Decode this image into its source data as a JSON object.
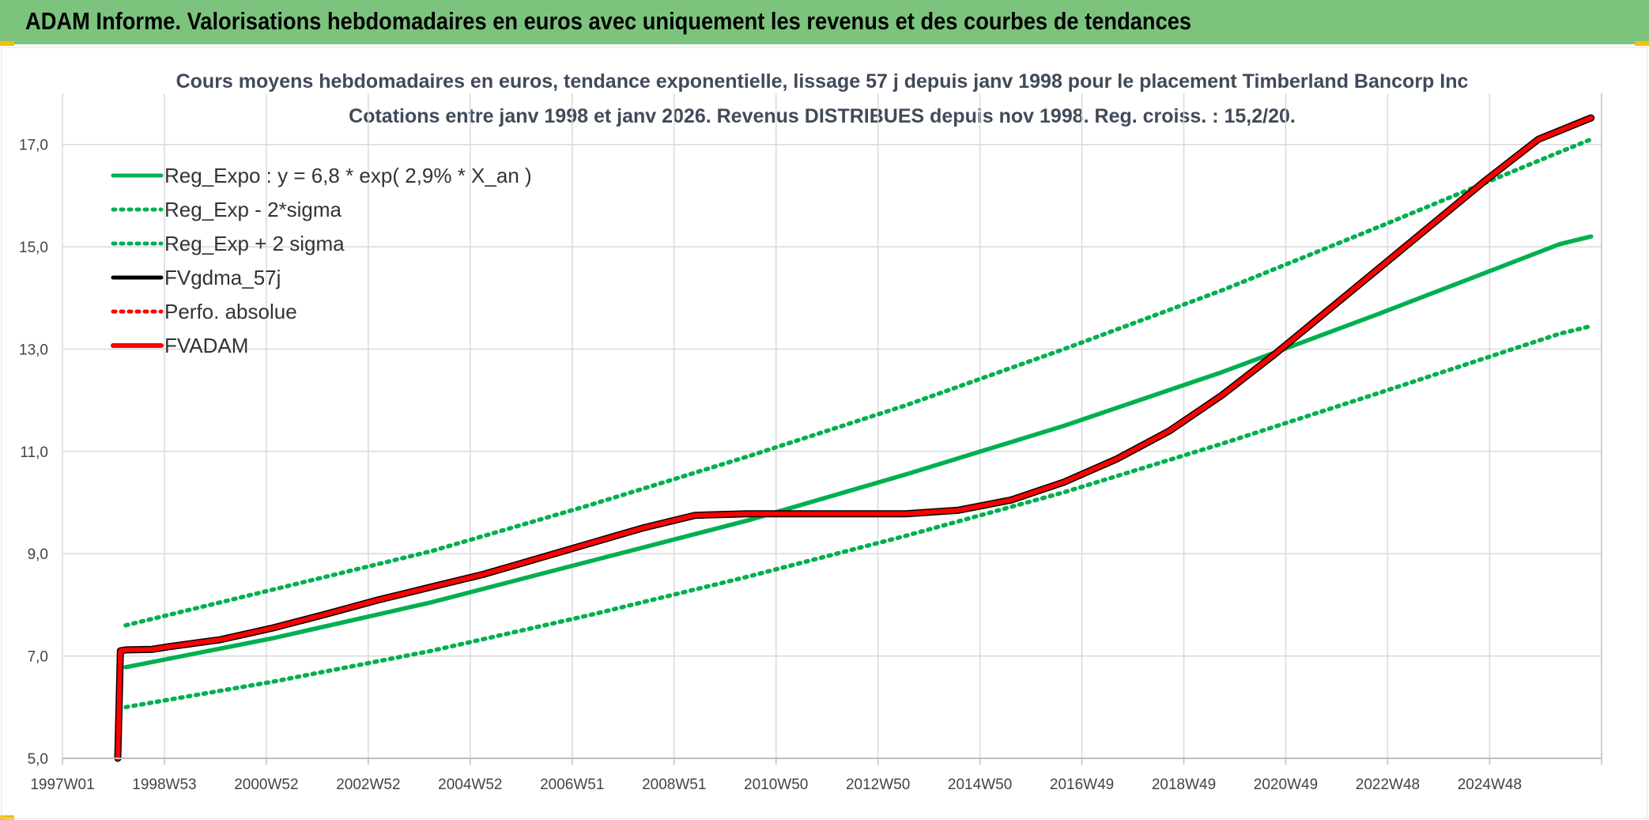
{
  "banner": {
    "title": "ADAM Informe. Valorisations hebdomadaires en euros avec uniquement les revenus et des courbes de tendances"
  },
  "colors": {
    "banner_bg": "#7cc47d",
    "reg_green": "#00b050",
    "fvadam_red": "#ff0000",
    "fvgdma_black": "#000000",
    "grid": "#d9d9d9"
  },
  "chart_data": {
    "type": "line",
    "title_line1": "Cours moyens hebdomadaires en euros, tendance exponentielle, lissage 57 j depuis janv 1998 pour le placement Timberland Bancorp Inc",
    "title_line2": "Cotations entre janv 1998 et janv 2026. Revenus DISTRIBUES depuis nov 1998. Reg. croiss. : 15,2/20.",
    "x_tick_labels": [
      "1997W01",
      "1998W53",
      "2000W52",
      "2002W52",
      "2004W52",
      "2006W51",
      "2008W51",
      "2010W50",
      "2012W50",
      "2014W50",
      "2016W49",
      "2018W49",
      "2020W49",
      "2022W48",
      "2024W48"
    ],
    "x_range": [
      1997.0,
      2026.2
    ],
    "ylim": [
      5.0,
      18.0
    ],
    "y_ticks": [
      5.0,
      7.0,
      9.0,
      11.0,
      13.0,
      15.0,
      17.0
    ],
    "y_tick_labels": [
      "5,0",
      "7,0",
      "9,0",
      "11,0",
      "13,0",
      "15,0",
      "17,0"
    ],
    "grid": true,
    "legend_position": "top-left",
    "series": [
      {
        "name": "Reg_Expo : y = 6,8 * exp( 2,9% *  X_an )",
        "style": "solid",
        "color": "#00b050",
        "x": [
          1998.2,
          2001,
          2004,
          2007,
          2010,
          2013,
          2016,
          2019,
          2022,
          2025.4,
          2026.0
        ],
        "y": [
          6.78,
          7.35,
          8.05,
          8.85,
          9.65,
          10.55,
          11.5,
          12.55,
          13.7,
          15.05,
          15.2
        ]
      },
      {
        "name": "Reg_Exp - 2*sigma",
        "style": "dotted",
        "color": "#00b050",
        "x": [
          1998.2,
          2001,
          2004,
          2007,
          2010,
          2013,
          2016,
          2019,
          2022,
          2025.4,
          2026.0
        ],
        "y": [
          6.0,
          6.5,
          7.1,
          7.8,
          8.55,
          9.35,
          10.2,
          11.15,
          12.15,
          13.3,
          13.45
        ]
      },
      {
        "name": "Reg_Exp + 2 sigma",
        "style": "dotted",
        "color": "#00b050",
        "x": [
          1998.2,
          2001,
          2004,
          2007,
          2010,
          2013,
          2016,
          2019,
          2022,
          2025.4,
          2026.0
        ],
        "y": [
          7.6,
          8.3,
          9.05,
          9.95,
          10.9,
          11.9,
          13.0,
          14.15,
          15.4,
          16.85,
          17.1
        ]
      },
      {
        "name": "FVgdma_57j",
        "style": "solid",
        "color": "#000000",
        "x": [
          1998.05,
          1998.1,
          1998.2,
          1998.7,
          1999,
          2000,
          2001,
          2002,
          2003,
          2004,
          2005,
          2006,
          2007,
          2008,
          2009,
          2010,
          2011,
          2012,
          2013,
          2014,
          2015,
          2016,
          2017,
          2018,
          2019,
          2020,
          2021,
          2022,
          2023,
          2024,
          2025,
          2026.0
        ],
        "y": [
          5.0,
          7.1,
          7.12,
          7.13,
          7.18,
          7.32,
          7.55,
          7.82,
          8.1,
          8.35,
          8.6,
          8.9,
          9.2,
          9.5,
          9.75,
          9.78,
          9.78,
          9.78,
          9.78,
          9.85,
          10.05,
          10.4,
          10.85,
          11.4,
          12.1,
          12.9,
          13.75,
          14.6,
          15.45,
          16.3,
          17.1,
          17.52
        ]
      },
      {
        "name": "Perfo. absolue",
        "style": "dotted",
        "color": "#ff0000",
        "x": [],
        "y": []
      },
      {
        "name": "FVADAM",
        "style": "solid",
        "color": "#ff0000",
        "x": [
          1998.05,
          1998.1,
          1998.2,
          1998.7,
          1999,
          2000,
          2001,
          2002,
          2003,
          2004,
          2005,
          2006,
          2007,
          2008,
          2009,
          2010,
          2011,
          2012,
          2013,
          2014,
          2015,
          2016,
          2017,
          2018,
          2019,
          2020,
          2021,
          2022,
          2023,
          2024,
          2025,
          2026.0
        ],
        "y": [
          5.0,
          7.1,
          7.12,
          7.13,
          7.18,
          7.32,
          7.55,
          7.82,
          8.1,
          8.35,
          8.6,
          8.9,
          9.2,
          9.5,
          9.75,
          9.78,
          9.78,
          9.78,
          9.78,
          9.85,
          10.05,
          10.4,
          10.85,
          11.4,
          12.1,
          12.9,
          13.75,
          14.6,
          15.45,
          16.3,
          17.1,
          17.52
        ]
      }
    ]
  }
}
